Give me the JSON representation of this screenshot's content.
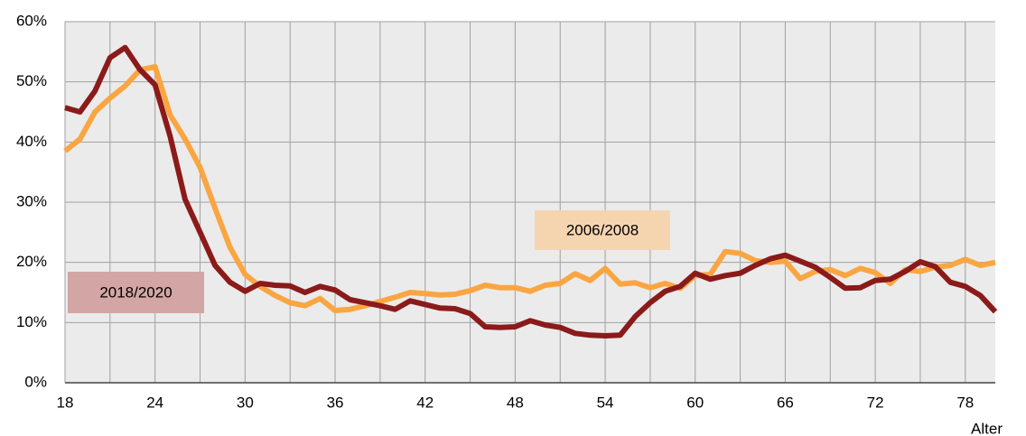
{
  "chart_data": {
    "type": "line",
    "x": [
      18,
      19,
      20,
      21,
      22,
      23,
      24,
      25,
      26,
      27,
      28,
      29,
      30,
      31,
      32,
      33,
      34,
      35,
      36,
      37,
      38,
      39,
      40,
      41,
      42,
      43,
      44,
      45,
      46,
      47,
      48,
      49,
      50,
      51,
      52,
      53,
      54,
      55,
      56,
      57,
      58,
      59,
      60,
      61,
      62,
      63,
      64,
      65,
      66,
      67,
      68,
      69,
      70,
      71,
      72,
      73,
      74,
      75,
      76,
      77,
      78,
      79,
      80
    ],
    "series": [
      {
        "name": "2006/2008",
        "color": "#f9a642",
        "values": [
          38.5,
          40.5,
          45,
          47.3,
          49.3,
          52,
          52.5,
          44.5,
          40.5,
          35.8,
          29,
          22.5,
          18,
          16,
          14.5,
          13.3,
          12.8,
          14,
          12,
          12.2,
          12.8,
          13.5,
          14.2,
          15,
          14.8,
          14.6,
          14.7,
          15.3,
          16.2,
          15.8,
          15.8,
          15.2,
          16.2,
          16.5,
          18.1,
          17,
          19,
          16.4,
          16.6,
          15.8,
          16.5,
          15.7,
          17.8,
          18,
          21.8,
          21.5,
          20.3,
          20,
          20.2,
          17.3,
          18.5,
          18.8,
          17.8,
          19,
          18.3,
          16.5,
          18.8,
          18.5,
          19.2,
          19.5,
          20.5,
          19.5,
          20
        ]
      },
      {
        "name": "2018/2020",
        "color": "#8b1a1a",
        "values": [
          45.7,
          45,
          48.5,
          54,
          55.7,
          52,
          49.5,
          41,
          30.5,
          25,
          19.5,
          16.7,
          15.2,
          16.5,
          16.2,
          16.1,
          15,
          16,
          15.4,
          13.8,
          13.3,
          12.8,
          12.2,
          13.6,
          13,
          12.4,
          12.3,
          11.5,
          9.3,
          9.2,
          9.3,
          10.3,
          9.6,
          9.2,
          8.2,
          7.9,
          7.8,
          7.9,
          11,
          13.3,
          15.2,
          16,
          18.2,
          17.2,
          17.8,
          18.2,
          19.5,
          20.6,
          21.2,
          20.2,
          19.2,
          17.5,
          15.7,
          15.8,
          17,
          17.2,
          18.5,
          20.1,
          19.3,
          16.7,
          16,
          14.5,
          11.8
        ]
      }
    ],
    "x_label": "Alter",
    "xlim": [
      18,
      80
    ],
    "xticks": [
      18,
      24,
      30,
      36,
      42,
      48,
      54,
      60,
      66,
      72,
      78
    ],
    "ylim": [
      0,
      60
    ],
    "yticks": [
      {
        "value": 0,
        "label": "0%"
      },
      {
        "value": 10,
        "label": "10%"
      },
      {
        "value": 20,
        "label": "20%"
      },
      {
        "value": 30,
        "label": "30%"
      },
      {
        "value": 40,
        "label": "40%"
      },
      {
        "value": 50,
        "label": "50%"
      },
      {
        "value": 60,
        "label": "60%"
      }
    ],
    "grid": true
  }
}
